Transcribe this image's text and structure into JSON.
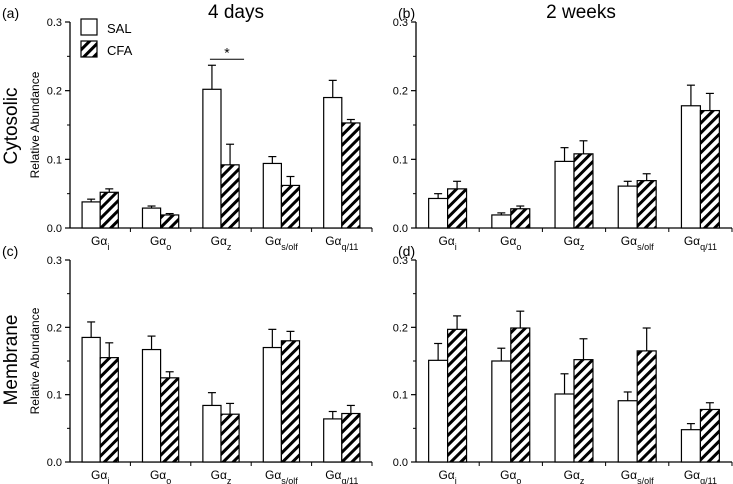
{
  "figure": {
    "col_titles": [
      "4 days",
      "2 weeks"
    ],
    "row_titles": [
      "Cytosolic",
      "Membrane"
    ],
    "ylabel": "Relative Abundance",
    "legend": {
      "sal": "SAL",
      "cfa": "CFA"
    },
    "colors": {
      "sal_fill": "#ffffff",
      "cfa_fill": "#ffffff",
      "stroke": "#000000"
    }
  },
  "chart_data": [
    {
      "id": "a",
      "type": "bar",
      "panel_label": "(a)",
      "title": "4 days",
      "row": "Cytosolic",
      "ylabel": "Relative Abundance",
      "ylim": [
        0,
        0.3
      ],
      "yticks": [
        "0.0",
        "0.1",
        "0.2",
        "0.3"
      ],
      "categories": [
        "Gα_i",
        "Gα_o",
        "Gα_z",
        "Gα_s/olf",
        "Gα_q/11"
      ],
      "series": [
        {
          "name": "SAL",
          "values": [
            0.038,
            0.029,
            0.202,
            0.094,
            0.19
          ],
          "errors": [
            0.004,
            0.003,
            0.035,
            0.01,
            0.025
          ]
        },
        {
          "name": "CFA",
          "values": [
            0.052,
            0.019,
            0.092,
            0.062,
            0.153
          ],
          "errors": [
            0.005,
            0.002,
            0.03,
            0.013,
            0.005
          ]
        }
      ],
      "annotations": [
        {
          "text": "*",
          "category": "Gα_z"
        }
      ]
    },
    {
      "id": "b",
      "type": "bar",
      "panel_label": "(b)",
      "title": "2 weeks",
      "row": "Cytosolic",
      "ylabel": "",
      "ylim": [
        0,
        0.3
      ],
      "yticks": [
        "0.0",
        "0.1",
        "0.2",
        "0.3"
      ],
      "categories": [
        "Gα_i",
        "Gα_o",
        "Gα_z",
        "Gα_s/olf",
        "Gα_q/11"
      ],
      "series": [
        {
          "name": "SAL",
          "values": [
            0.043,
            0.019,
            0.097,
            0.061,
            0.178
          ],
          "errors": [
            0.007,
            0.003,
            0.02,
            0.007,
            0.03
          ]
        },
        {
          "name": "CFA",
          "values": [
            0.057,
            0.028,
            0.108,
            0.069,
            0.171
          ],
          "errors": [
            0.011,
            0.004,
            0.019,
            0.01,
            0.025
          ]
        }
      ],
      "annotations": []
    },
    {
      "id": "c",
      "type": "bar",
      "panel_label": "(c)",
      "title": "",
      "row": "Membrane",
      "ylabel": "Relative Abundance",
      "ylim": [
        0,
        0.3
      ],
      "yticks": [
        "0.0",
        "0.1",
        "0.2",
        "0.3"
      ],
      "categories": [
        "Gα_i",
        "Gα_o",
        "Gα_z",
        "Gα_s/olf",
        "Gα_q/11"
      ],
      "series": [
        {
          "name": "SAL",
          "values": [
            0.185,
            0.167,
            0.084,
            0.17,
            0.064
          ],
          "errors": [
            0.023,
            0.02,
            0.019,
            0.027,
            0.011
          ]
        },
        {
          "name": "CFA",
          "values": [
            0.155,
            0.125,
            0.071,
            0.18,
            0.072
          ],
          "errors": [
            0.022,
            0.009,
            0.016,
            0.014,
            0.012
          ]
        }
      ],
      "annotations": []
    },
    {
      "id": "d",
      "type": "bar",
      "panel_label": "(d)",
      "title": "",
      "row": "Membrane",
      "ylabel": "",
      "ylim": [
        0,
        0.3
      ],
      "yticks": [
        "0.0",
        "0.1",
        "0.2",
        "0.3"
      ],
      "categories": [
        "Gα_i",
        "Gα_o",
        "Gα_z",
        "Gα_s/olf",
        "Gα_q/11"
      ],
      "series": [
        {
          "name": "SAL",
          "values": [
            0.151,
            0.15,
            0.101,
            0.091,
            0.048
          ],
          "errors": [
            0.025,
            0.019,
            0.03,
            0.013,
            0.009
          ]
        },
        {
          "name": "CFA",
          "values": [
            0.197,
            0.199,
            0.152,
            0.165,
            0.078
          ],
          "errors": [
            0.02,
            0.025,
            0.031,
            0.034,
            0.01
          ]
        }
      ],
      "annotations": []
    }
  ]
}
